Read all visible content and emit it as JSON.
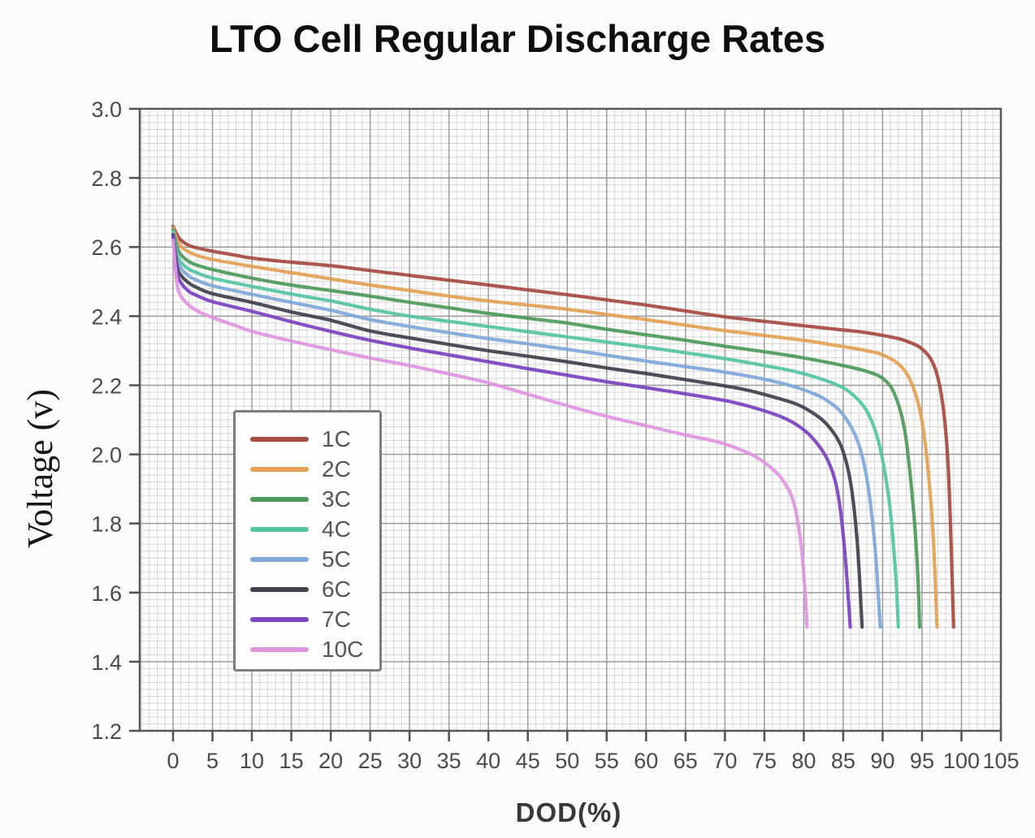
{
  "title": "LTO Cell Regular Discharge Rates",
  "colors": {
    "frame": "#58585c",
    "grid_major": "#9b9ba0",
    "grid_minor": "#d5d5d8",
    "tick": "#505055",
    "tick_text": "#4a4a4d",
    "title_text": "#0e0e0e",
    "axis_label_text": "#38383c",
    "legend_border": "#7d7d80",
    "legend_text": "#555558",
    "plot_bg": "#fdfdfc",
    "page_bg": "#fcfcfc"
  },
  "chart_data": {
    "type": "line",
    "title": "LTO Cell Regular Discharge Rates",
    "xlabel": "DOD(%)",
    "ylabel": "Voltage (v)",
    "xlim": [
      -4.2,
      105
    ],
    "ylim": [
      1.2,
      3.0
    ],
    "x_ticks": [
      0,
      5,
      10,
      15,
      20,
      25,
      30,
      35,
      40,
      45,
      50,
      55,
      60,
      65,
      70,
      75,
      80,
      85,
      90,
      95,
      100,
      105
    ],
    "y_ticks": [
      3.0,
      2.8,
      2.6,
      2.4,
      2.2,
      2.0,
      1.8,
      1.6,
      1.4,
      1.2
    ],
    "y_tick_labels": [
      "3.0",
      "2.8",
      "2.6",
      "2.4",
      "2.2",
      "2.0",
      "1.8",
      "1.6",
      "1.4",
      "1.2"
    ],
    "grid": {
      "show": true,
      "minor_x_step": 1,
      "minor_y_step": 0.02,
      "major_x_step": 5,
      "major_y_step": 0.2
    },
    "legend_position": "inside-left",
    "series": [
      {
        "name": "1C",
        "color": "#a64b42",
        "points": [
          [
            0,
            2.66
          ],
          [
            0.5,
            2.636
          ],
          [
            1,
            2.62
          ],
          [
            2,
            2.605
          ],
          [
            3,
            2.598
          ],
          [
            5,
            2.588
          ],
          [
            8,
            2.576
          ],
          [
            10,
            2.568
          ],
          [
            15,
            2.556
          ],
          [
            20,
            2.546
          ],
          [
            25,
            2.532
          ],
          [
            30,
            2.518
          ],
          [
            35,
            2.504
          ],
          [
            40,
            2.49
          ],
          [
            45,
            2.476
          ],
          [
            50,
            2.462
          ],
          [
            55,
            2.447
          ],
          [
            60,
            2.432
          ],
          [
            65,
            2.415
          ],
          [
            70,
            2.398
          ],
          [
            75,
            2.385
          ],
          [
            80,
            2.372
          ],
          [
            85,
            2.36
          ],
          [
            88,
            2.352
          ],
          [
            91,
            2.34
          ],
          [
            93,
            2.328
          ],
          [
            95,
            2.305
          ],
          [
            96.5,
            2.258
          ],
          [
            97.5,
            2.165
          ],
          [
            98.2,
            2.01
          ],
          [
            98.6,
            1.8
          ],
          [
            99,
            1.5
          ]
        ]
      },
      {
        "name": "2C",
        "color": "#e2a155",
        "points": [
          [
            0,
            2.655
          ],
          [
            0.5,
            2.62
          ],
          [
            1,
            2.602
          ],
          [
            2,
            2.586
          ],
          [
            3,
            2.576
          ],
          [
            5,
            2.564
          ],
          [
            10,
            2.544
          ],
          [
            15,
            2.526
          ],
          [
            20,
            2.508
          ],
          [
            25,
            2.49
          ],
          [
            30,
            2.474
          ],
          [
            35,
            2.458
          ],
          [
            40,
            2.444
          ],
          [
            45,
            2.432
          ],
          [
            50,
            2.42
          ],
          [
            55,
            2.405
          ],
          [
            60,
            2.39
          ],
          [
            65,
            2.374
          ],
          [
            70,
            2.358
          ],
          [
            75,
            2.344
          ],
          [
            80,
            2.33
          ],
          [
            85,
            2.312
          ],
          [
            88,
            2.3
          ],
          [
            90,
            2.288
          ],
          [
            92,
            2.262
          ],
          [
            93.5,
            2.215
          ],
          [
            94.8,
            2.12
          ],
          [
            95.7,
            1.97
          ],
          [
            96.4,
            1.77
          ],
          [
            96.9,
            1.5
          ]
        ]
      },
      {
        "name": "3C",
        "color": "#4f9a5b",
        "points": [
          [
            0,
            2.65
          ],
          [
            0.5,
            2.6
          ],
          [
            1,
            2.578
          ],
          [
            2,
            2.558
          ],
          [
            3,
            2.548
          ],
          [
            5,
            2.535
          ],
          [
            10,
            2.51
          ],
          [
            15,
            2.49
          ],
          [
            20,
            2.474
          ],
          [
            25,
            2.458
          ],
          [
            30,
            2.44
          ],
          [
            35,
            2.424
          ],
          [
            40,
            2.408
          ],
          [
            45,
            2.394
          ],
          [
            50,
            2.38
          ],
          [
            55,
            2.362
          ],
          [
            60,
            2.346
          ],
          [
            65,
            2.33
          ],
          [
            70,
            2.313
          ],
          [
            75,
            2.297
          ],
          [
            80,
            2.279
          ],
          [
            85,
            2.257
          ],
          [
            88,
            2.24
          ],
          [
            90,
            2.22
          ],
          [
            91.5,
            2.175
          ],
          [
            92.8,
            2.07
          ],
          [
            93.8,
            1.87
          ],
          [
            94.4,
            1.68
          ],
          [
            94.7,
            1.5
          ]
        ]
      },
      {
        "name": "4C",
        "color": "#56c4a4",
        "points": [
          [
            0,
            2.645
          ],
          [
            0.5,
            2.582
          ],
          [
            1,
            2.556
          ],
          [
            2,
            2.536
          ],
          [
            3,
            2.526
          ],
          [
            5,
            2.51
          ],
          [
            10,
            2.486
          ],
          [
            15,
            2.464
          ],
          [
            20,
            2.444
          ],
          [
            25,
            2.42
          ],
          [
            30,
            2.4
          ],
          [
            35,
            2.385
          ],
          [
            40,
            2.37
          ],
          [
            45,
            2.355
          ],
          [
            50,
            2.34
          ],
          [
            55,
            2.325
          ],
          [
            60,
            2.31
          ],
          [
            65,
            2.294
          ],
          [
            70,
            2.277
          ],
          [
            75,
            2.257
          ],
          [
            78,
            2.244
          ],
          [
            81,
            2.227
          ],
          [
            84,
            2.203
          ],
          [
            86,
            2.177
          ],
          [
            88,
            2.125
          ],
          [
            89.5,
            2.035
          ],
          [
            90.8,
            1.87
          ],
          [
            91.6,
            1.67
          ],
          [
            92,
            1.5
          ]
        ]
      },
      {
        "name": "5C",
        "color": "#80a8d8",
        "points": [
          [
            0,
            2.64
          ],
          [
            0.5,
            2.565
          ],
          [
            1,
            2.538
          ],
          [
            2,
            2.516
          ],
          [
            3,
            2.504
          ],
          [
            5,
            2.488
          ],
          [
            10,
            2.463
          ],
          [
            15,
            2.44
          ],
          [
            20,
            2.417
          ],
          [
            25,
            2.39
          ],
          [
            30,
            2.37
          ],
          [
            35,
            2.352
          ],
          [
            40,
            2.335
          ],
          [
            45,
            2.32
          ],
          [
            50,
            2.304
          ],
          [
            55,
            2.287
          ],
          [
            60,
            2.27
          ],
          [
            65,
            2.254
          ],
          [
            70,
            2.238
          ],
          [
            74,
            2.222
          ],
          [
            78,
            2.201
          ],
          [
            81,
            2.178
          ],
          [
            83,
            2.155
          ],
          [
            85,
            2.115
          ],
          [
            86.8,
            2.04
          ],
          [
            88,
            1.93
          ],
          [
            89,
            1.74
          ],
          [
            89.7,
            1.5
          ]
        ]
      },
      {
        "name": "6C",
        "color": "#41414f",
        "points": [
          [
            0,
            2.635
          ],
          [
            0.5,
            2.545
          ],
          [
            1,
            2.518
          ],
          [
            2,
            2.496
          ],
          [
            3,
            2.483
          ],
          [
            5,
            2.465
          ],
          [
            10,
            2.44
          ],
          [
            15,
            2.412
          ],
          [
            20,
            2.388
          ],
          [
            25,
            2.357
          ],
          [
            30,
            2.337
          ],
          [
            35,
            2.318
          ],
          [
            40,
            2.3
          ],
          [
            45,
            2.284
          ],
          [
            50,
            2.268
          ],
          [
            55,
            2.25
          ],
          [
            60,
            2.234
          ],
          [
            65,
            2.216
          ],
          [
            70,
            2.198
          ],
          [
            73,
            2.185
          ],
          [
            76,
            2.167
          ],
          [
            79,
            2.146
          ],
          [
            81,
            2.122
          ],
          [
            83,
            2.085
          ],
          [
            84.8,
            2.02
          ],
          [
            86,
            1.91
          ],
          [
            86.8,
            1.74
          ],
          [
            87.4,
            1.5
          ]
        ]
      },
      {
        "name": "7C",
        "color": "#7b44c0",
        "points": [
          [
            0,
            2.63
          ],
          [
            0.5,
            2.527
          ],
          [
            1,
            2.497
          ],
          [
            2,
            2.472
          ],
          [
            3,
            2.46
          ],
          [
            5,
            2.442
          ],
          [
            10,
            2.414
          ],
          [
            15,
            2.384
          ],
          [
            20,
            2.356
          ],
          [
            25,
            2.33
          ],
          [
            30,
            2.308
          ],
          [
            35,
            2.288
          ],
          [
            40,
            2.268
          ],
          [
            45,
            2.248
          ],
          [
            50,
            2.229
          ],
          [
            55,
            2.21
          ],
          [
            60,
            2.193
          ],
          [
            65,
            2.175
          ],
          [
            68,
            2.164
          ],
          [
            71,
            2.151
          ],
          [
            74,
            2.133
          ],
          [
            77,
            2.11
          ],
          [
            79,
            2.087
          ],
          [
            81,
            2.05
          ],
          [
            83,
            1.985
          ],
          [
            84.3,
            1.89
          ],
          [
            85.2,
            1.72
          ],
          [
            85.9,
            1.5
          ]
        ]
      },
      {
        "name": "10C",
        "color": "#de96df",
        "points": [
          [
            0,
            2.62
          ],
          [
            0.5,
            2.495
          ],
          [
            1,
            2.458
          ],
          [
            2,
            2.432
          ],
          [
            3,
            2.416
          ],
          [
            5,
            2.396
          ],
          [
            8,
            2.372
          ],
          [
            10,
            2.356
          ],
          [
            15,
            2.328
          ],
          [
            20,
            2.303
          ],
          [
            25,
            2.279
          ],
          [
            30,
            2.257
          ],
          [
            35,
            2.233
          ],
          [
            40,
            2.207
          ],
          [
            45,
            2.174
          ],
          [
            50,
            2.141
          ],
          [
            55,
            2.11
          ],
          [
            60,
            2.083
          ],
          [
            65,
            2.056
          ],
          [
            68,
            2.042
          ],
          [
            70,
            2.03
          ],
          [
            72,
            2.013
          ],
          [
            74,
            1.992
          ],
          [
            76,
            1.958
          ],
          [
            77.5,
            1.92
          ],
          [
            78.8,
            1.855
          ],
          [
            79.7,
            1.73
          ],
          [
            80.2,
            1.59
          ],
          [
            80.4,
            1.5
          ]
        ]
      }
    ]
  }
}
